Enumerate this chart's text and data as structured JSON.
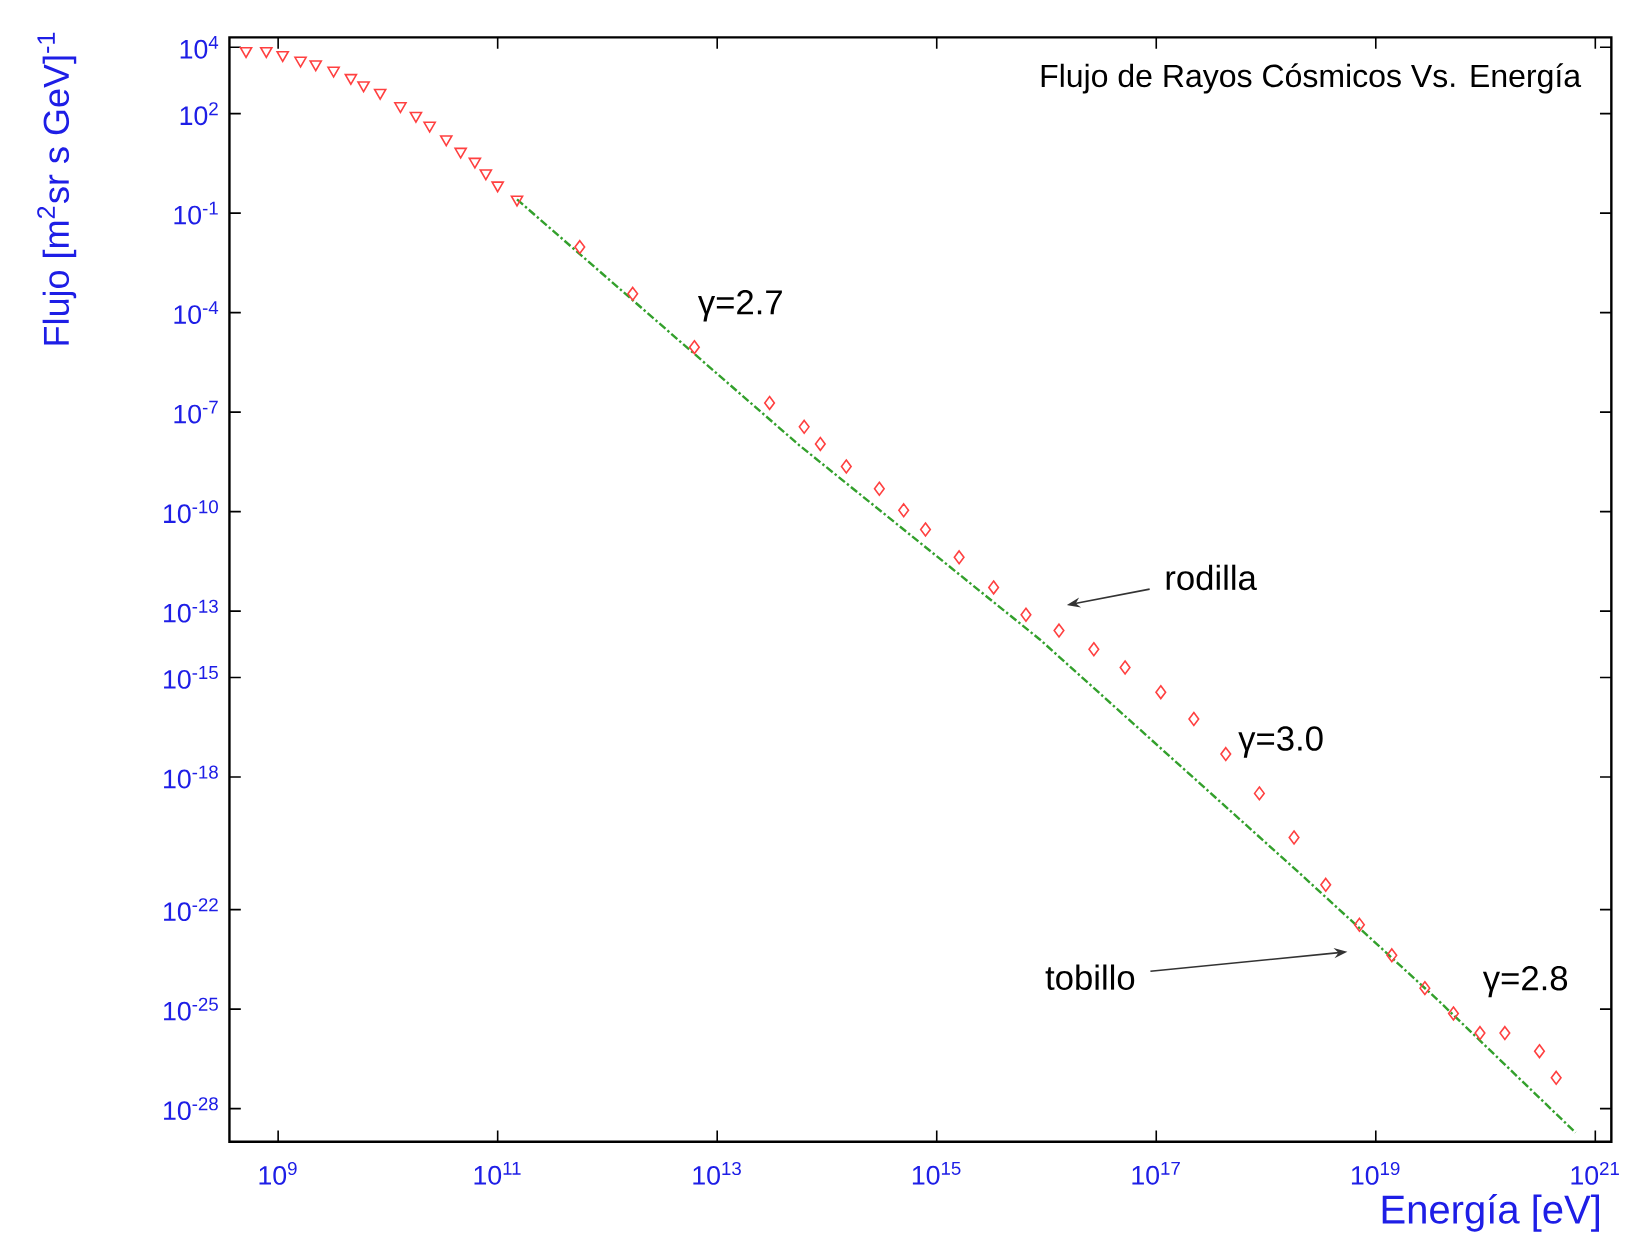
{
  "chart_data": {
    "type": "scatter",
    "title": "Flujo de Rayos Cósmicos Vs. Energía",
    "xlabel": "Energía [eV]",
    "ylabel": "Flujo [m$^{2}$sr s GeV]$^{-1}$",
    "log": "xy",
    "grid": false,
    "xlim": [
      360000000.0,
      1.4e+21
    ],
    "ylim": [
      1e-29,
      20000.0
    ],
    "xticks": [
      {
        "value": 1000000000.0,
        "label": "10$^{9}$"
      },
      {
        "value": 100000000000.0,
        "label": "10$^{11}$"
      },
      {
        "value": 10000000000000.0,
        "label": "10$^{13}$"
      },
      {
        "value": 1000000000000000.0,
        "label": "10$^{15}$"
      },
      {
        "value": 1e+17,
        "label": "10$^{17}$"
      },
      {
        "value": 1e+19,
        "label": "10$^{19}$"
      },
      {
        "value": 1e+21,
        "label": "10$^{21}$"
      }
    ],
    "yticks": [
      {
        "value": 10000.0,
        "label": "10$^{4}$"
      },
      {
        "value": 100.0,
        "label": "10$^{2}$"
      },
      {
        "value": 0.1,
        "label": "10$^{-1}$"
      },
      {
        "value": 0.0001,
        "label": "10$^{-4}$"
      },
      {
        "value": 1e-07,
        "label": "10$^{-7}$"
      },
      {
        "value": 1e-10,
        "label": "10$^{-10}$"
      },
      {
        "value": 1e-13,
        "label": "10$^{-13}$"
      },
      {
        "value": 1e-15,
        "label": "10$^{-15}$"
      },
      {
        "value": 1e-18,
        "label": "10$^{-18}$"
      },
      {
        "value": 1e-22,
        "label": "10$^{-22}$"
      },
      {
        "value": 1e-25,
        "label": "10$^{-25}$"
      },
      {
        "value": 1e-28,
        "label": "10$^{-28}$"
      }
    ],
    "series": [
      {
        "marker": "triangle",
        "color": "#ff4040",
        "x": [
          510000000.0,
          780000000.0,
          1100000000.0,
          1600000000.0,
          2200000000.0,
          3200000000.0,
          4600000000.0,
          6000000000.0,
          8500000000.0,
          13000000000.0,
          18000000000.0,
          24000000000.0,
          34000000000.0,
          46000000000.0,
          62000000000.0,
          78000000000.0,
          100000000000.0,
          150000000000.0
        ],
        "values": [
          7800.0,
          7800.0,
          5900.0,
          4000.0,
          3100.0,
          2000.0,
          1200.0,
          720.0,
          430.0,
          170.0,
          87,
          44,
          17,
          7.2,
          3.6,
          1.6,
          0.69,
          0.26
        ]
      },
      {
        "marker": "diamond",
        "color": "#ff4040",
        "x": [
          560000000000.0,
          1700000000000.0,
          6200000000000.0,
          30000000000000.0,
          62000000000000.0,
          87000000000000.0,
          150000000000000.0,
          300000000000000.0,
          500000000000000.0,
          790000000000000.0,
          1600000000000000.0,
          3300000000000000.0,
          6500000000000000.0,
          1.3e+16,
          2.7e+16,
          5.2e+16,
          1.1e+17,
          2.2e+17,
          4.3e+17,
          8.7e+17,
          1.8e+18,
          3.5e+18,
          7.1e+18,
          1.4e+19,
          2.8e+19,
          5.1e+19,
          8.9e+19,
          1.5e+20,
          3.1e+20,
          4.4e+20
        ],
        "values": [
          0.0095,
          0.00037,
          9.1e-06,
          1.9e-07,
          3.6e-08,
          1.1e-08,
          2.3e-09,
          4.9e-10,
          1.1e-10,
          2.9e-11,
          4.2e-12,
          5.2e-13,
          7.8e-14,
          2.6e-14,
          7.1e-15,
          2e-15,
          3.6e-16,
          5.6e-17,
          4.9e-18,
          3.2e-19,
          1.5e-20,
          5.6e-22,
          3.5e-23,
          4.2e-24,
          4.3e-25,
          7.4e-26,
          1.9e-26,
          1.9e-26,
          5.4e-27,
          8.5e-28
        ]
      },
      {
        "type": "line",
        "line_style": "dotted",
        "color": "#33a02c",
        "x": [
          150000000000.0,
          56000000000000.0,
          8700000000000000.0,
          2e+18,
          3.8e+19,
          6.6e+20
        ],
        "values": [
          0.26,
          1e-08,
          1.4e-14,
          1.3e-21,
          1.7e-25,
          1.9e-29
        ]
      }
    ],
    "annotations": [
      "γ=2.7",
      "rodilla",
      "γ=3.0",
      "tobillo",
      "γ=2.8"
    ]
  }
}
